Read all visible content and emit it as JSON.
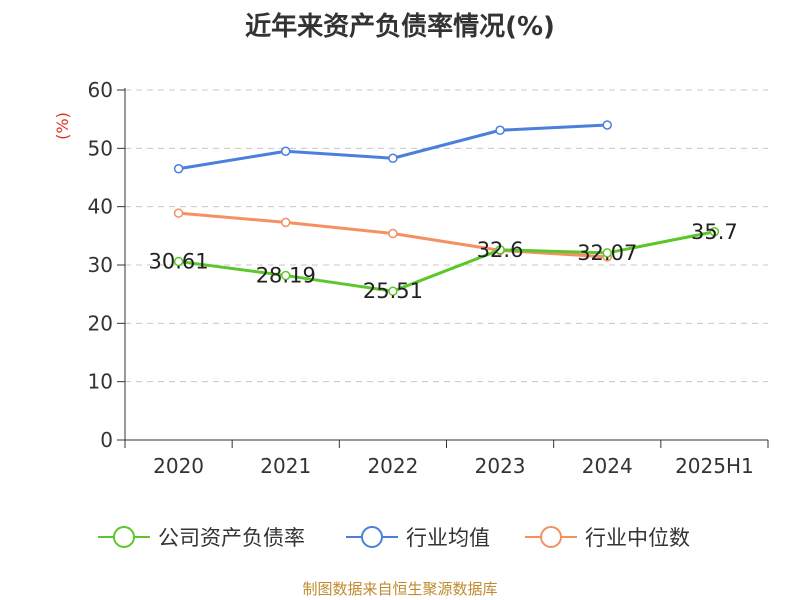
{
  "chart_data": {
    "type": "line",
    "title": "近年来资产负债率情况(%)",
    "ylabel": "(%)",
    "xlabel": "",
    "categories": [
      "2020",
      "2021",
      "2022",
      "2023",
      "2024",
      "2025H1"
    ],
    "ylim": [
      0,
      60
    ],
    "yticks": [
      0,
      10,
      20,
      30,
      40,
      50,
      60
    ],
    "grid": true,
    "legend_position": "bottom",
    "series": [
      {
        "name": "公司资产负债率",
        "color": "#5cc72a",
        "values": [
          30.61,
          28.19,
          25.51,
          32.6,
          32.07,
          35.7
        ],
        "labels": [
          "30.61",
          "28.19",
          "25.51",
          "32.6",
          "32.07",
          "35.7"
        ]
      },
      {
        "name": "行业均值",
        "color": "#4a7fdc",
        "values": [
          46.5,
          49.5,
          48.3,
          53.1,
          54.0,
          null
        ]
      },
      {
        "name": "行业中位数",
        "color": "#f59062",
        "values": [
          38.9,
          37.3,
          35.4,
          32.5,
          31.4,
          null
        ]
      }
    ]
  },
  "source": "制图数据来自恒生聚源数据库"
}
